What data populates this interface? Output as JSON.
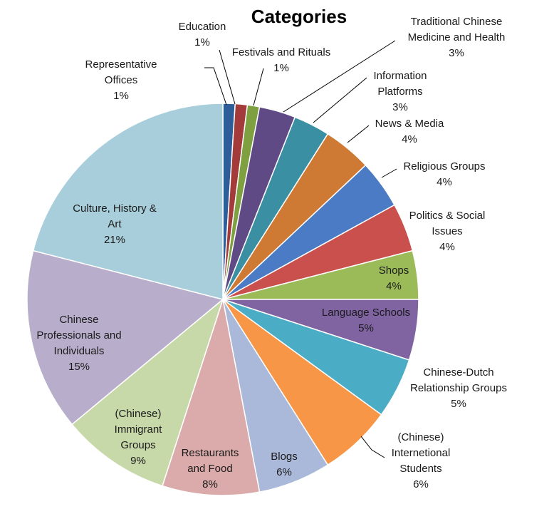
{
  "chart_data": {
    "type": "pie",
    "title": "Categories",
    "slices": [
      {
        "label": "Representative Offices",
        "value": 1,
        "pct": "1%",
        "color": "#2E5E9A"
      },
      {
        "label": "Education",
        "value": 1,
        "pct": "1%",
        "color": "#A23B3A"
      },
      {
        "label": "Festivals and Rituals",
        "value": 1,
        "pct": "1%",
        "color": "#7EA041"
      },
      {
        "label": "Traditional Chinese Medicine and Health",
        "value": 3,
        "pct": "3%",
        "color": "#5F4A85"
      },
      {
        "label": "Information Platforms",
        "value": 3,
        "pct": "3%",
        "color": "#3A8FA3"
      },
      {
        "label": "News & Media",
        "value": 4,
        "pct": "4%",
        "color": "#CF7A34"
      },
      {
        "label": "Religious Groups",
        "value": 4,
        "pct": "4%",
        "color": "#4B7BC4"
      },
      {
        "label": "Politics & Social Issues",
        "value": 4,
        "pct": "4%",
        "color": "#C9504C"
      },
      {
        "label": "Shops",
        "value": 4,
        "pct": "4%",
        "color": "#9BBB59"
      },
      {
        "label": "Language Schools",
        "value": 5,
        "pct": "5%",
        "color": "#8064A2"
      },
      {
        "label": "Chinese-Dutch Relationship Groups",
        "value": 5,
        "pct": "5%",
        "color": "#4BACC6"
      },
      {
        "label": "(Chinese) Internetional Students",
        "value": 6,
        "pct": "6%",
        "color": "#F79646"
      },
      {
        "label": "Blogs",
        "value": 6,
        "pct": "6%",
        "color": "#AAB9D9"
      },
      {
        "label": "Restaurants and Food",
        "value": 8,
        "pct": "8%",
        "color": "#DBAAAA"
      },
      {
        "label": "(Chinese) Immigrant Groups",
        "value": 9,
        "pct": "9%",
        "color": "#C8D9A9"
      },
      {
        "label": "Chinese Professionals and Individuals",
        "value": 15,
        "pct": "15%",
        "color": "#B8AECB"
      },
      {
        "label": "Culture, History & Art",
        "value": 21,
        "pct": "21%",
        "color": "#A8CEDB"
      }
    ]
  }
}
